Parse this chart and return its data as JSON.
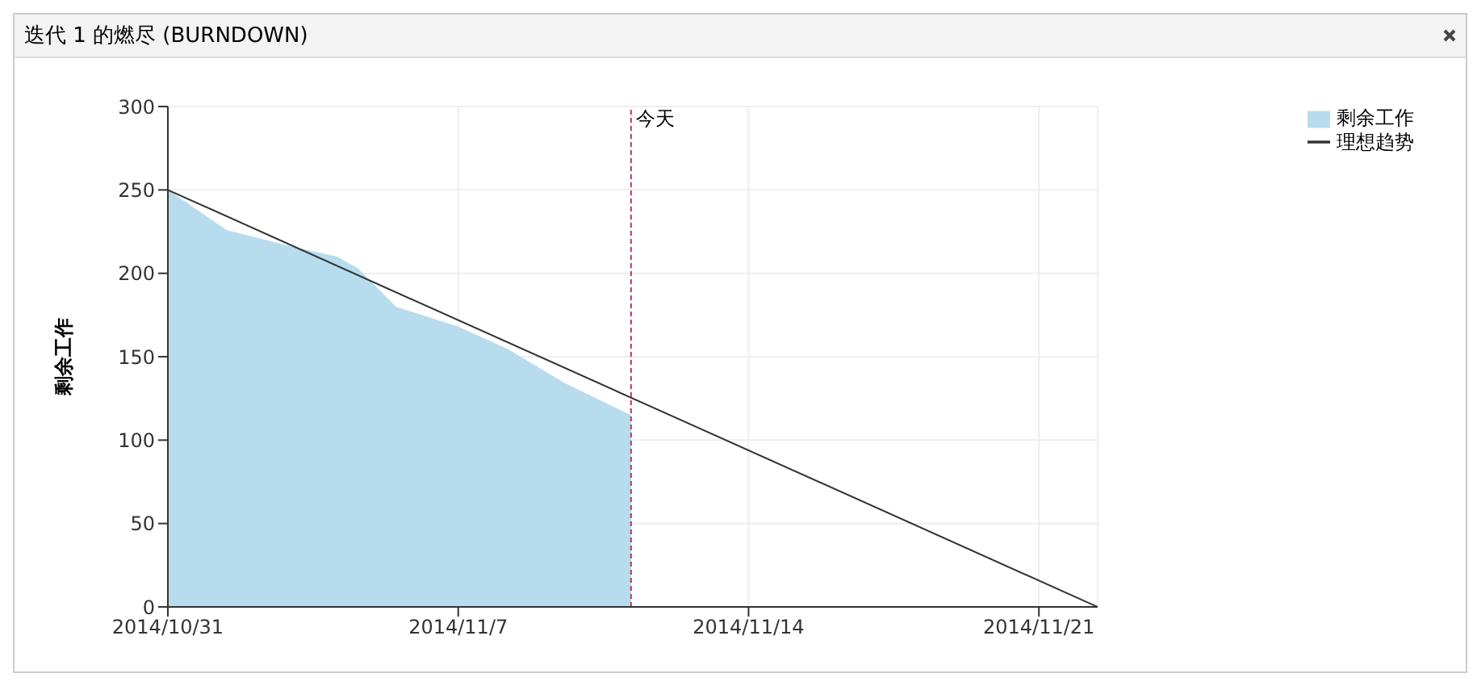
{
  "chart_data": {
    "type": "area",
    "title": "迭代 1 的燃尽 (BURNDOWN)",
    "ylabel": "剩余工作",
    "xlim": [
      "2014-10-31",
      "2014-11-22T10:00"
    ],
    "xticks": [
      {
        "value": "2014-10-31",
        "label": "2014/10/31"
      },
      {
        "value": "2014-11-07",
        "label": "2014/11/7"
      },
      {
        "value": "2014-11-14",
        "label": "2014/11/14"
      },
      {
        "value": "2014-11-21",
        "label": "2014/11/21"
      }
    ],
    "ylim": [
      0,
      300
    ],
    "yticks": [
      0,
      50,
      100,
      150,
      200,
      250,
      300
    ],
    "grid": true,
    "legend": "top right",
    "series": [
      {
        "name": "理想趋势",
        "type": "line",
        "color": "#333333",
        "x": [
          "2014-10-31",
          "2014-11-22T10:00"
        ],
        "values": [
          250,
          0
        ]
      },
      {
        "name": "剩余工作",
        "color": "#b7dcee",
        "x": [
          "2014-10-31",
          "2014-11-01T10:00",
          "2014-11-02T20:00",
          "2014-11-04T02:00",
          "2014-11-04T14:00",
          "2014-11-05T12:00",
          "2014-11-07",
          "2014-11-08T04:00",
          "2014-11-09T14:00",
          "2014-11-11T04:00"
        ],
        "values": [
          250,
          226,
          217,
          210,
          203,
          180,
          168,
          155,
          134,
          115
        ]
      }
    ],
    "ref_lines": [
      {
        "axis": "x",
        "value": "2014-11-11T04:00",
        "label": "今天",
        "color": "#cc3355",
        "line_style": "dashed"
      }
    ]
  }
}
